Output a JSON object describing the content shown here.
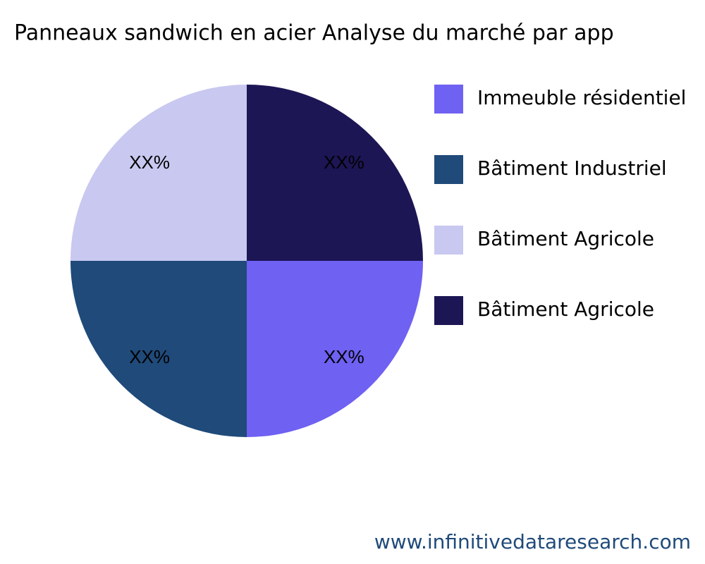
{
  "chart_data": {
    "type": "pie",
    "title": "Panneaux sandwich en acier Analyse du marché par app",
    "categories": [
      "Immeuble résidentiel",
      "Bâtiment Industriel",
      "Bâtiment Agricole",
      "Bâtiment Agricole"
    ],
    "values": [
      25,
      25,
      25,
      25
    ],
    "value_labels": [
      "XX%",
      "XX%",
      "XX%",
      "XX%"
    ],
    "colors": [
      "#6f61f2",
      "#1f4a7a",
      "#c8c8f0",
      "#1c1655"
    ],
    "legend": "right",
    "source": "www.infinitivedataresearch.com"
  }
}
